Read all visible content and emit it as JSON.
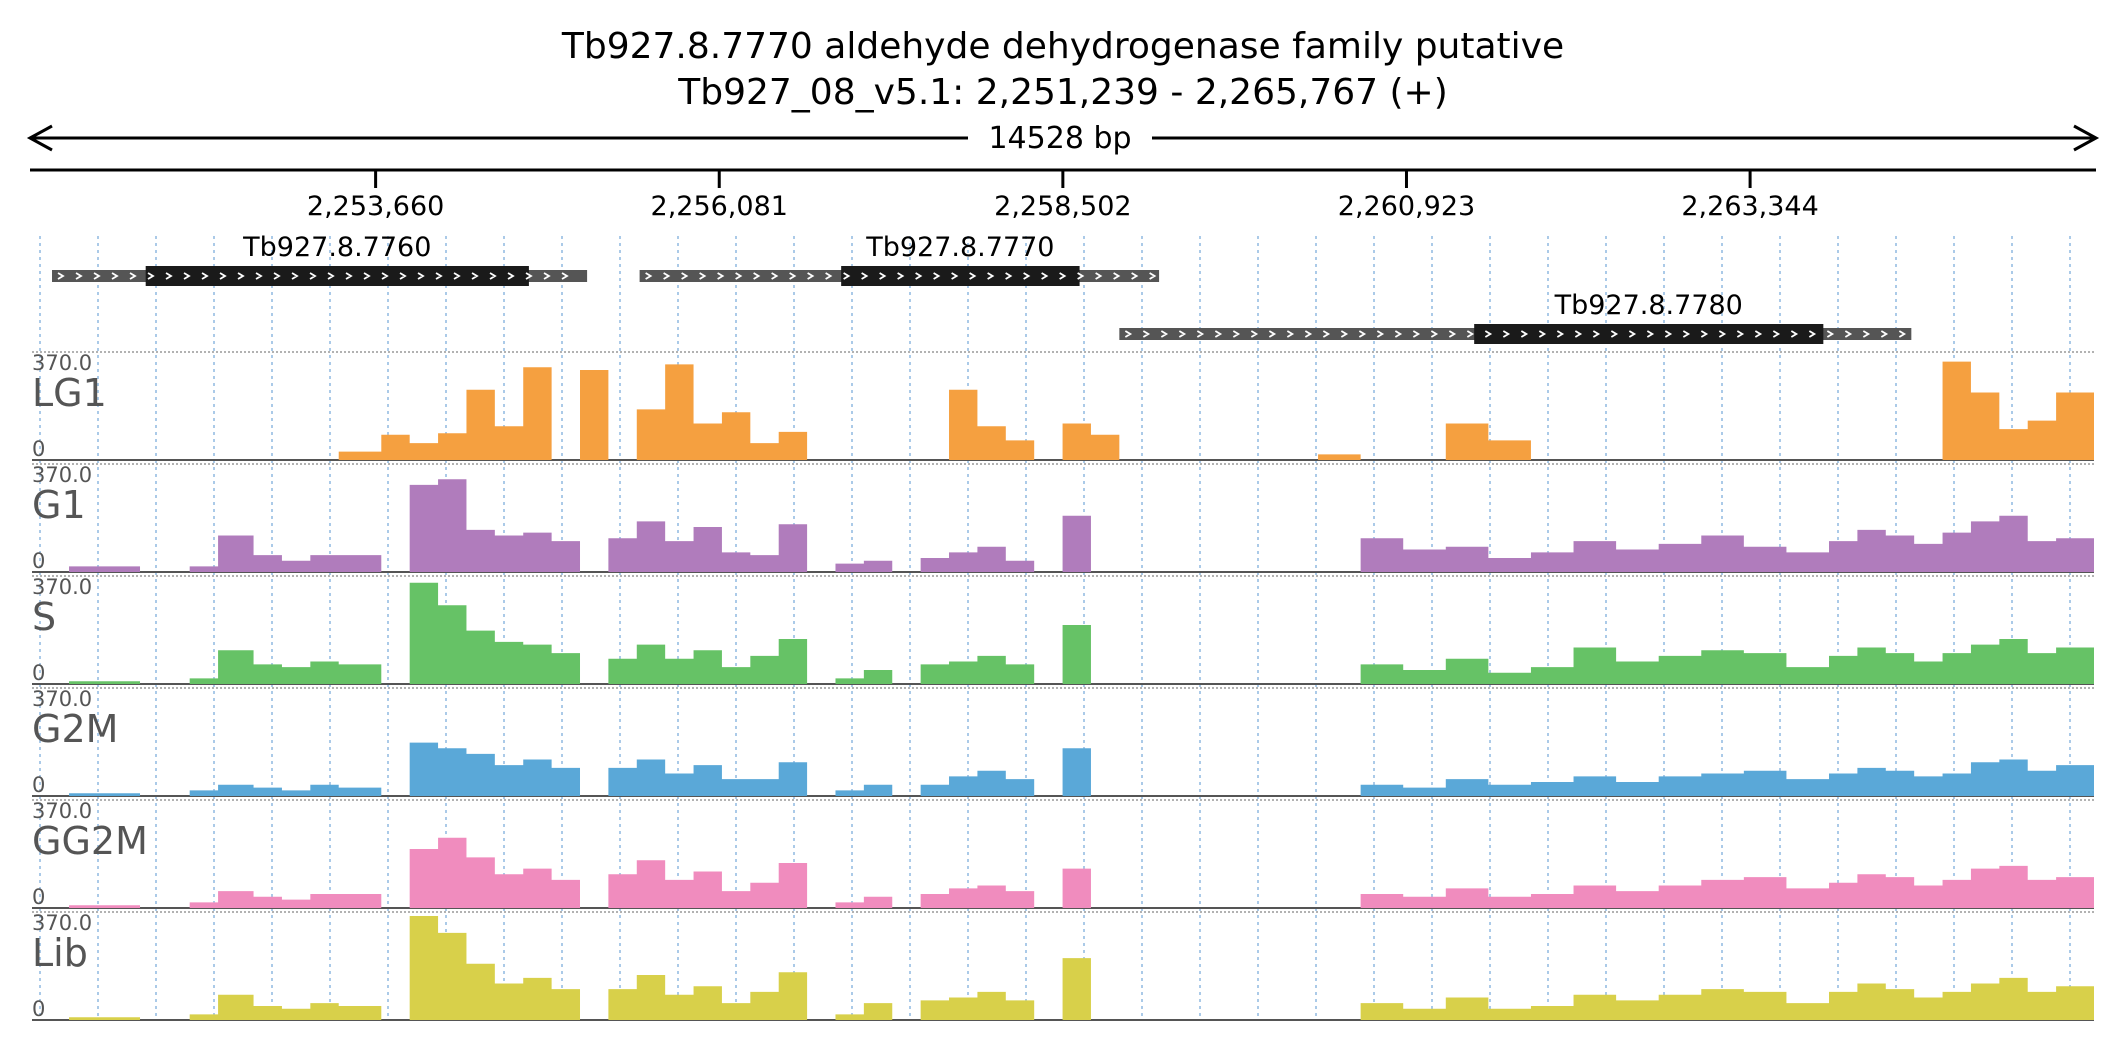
{
  "title": "Tb927.8.7770  aldehyde dehydrogenase family  putative",
  "subtitle": "Tb927_08_v5.1: 2,251,239 - 2,265,767 (+)",
  "span_label": "14528 bp",
  "chart_data": {
    "type": "area",
    "chromosome": "Tb927_08_v5.1",
    "region": {
      "start": 2251239,
      "end": 2265767,
      "strand": "+"
    },
    "x_ticks": [
      {
        "value": 2253660,
        "label": "2,253,660"
      },
      {
        "value": 2256081,
        "label": "2,256,081"
      },
      {
        "value": 2258502,
        "label": "2,258,502"
      },
      {
        "value": 2260923,
        "label": "2,260,923"
      },
      {
        "value": 2263344,
        "label": "2,263,344"
      }
    ],
    "genes": [
      {
        "name": "Tb927.8.7760",
        "start": 2251380,
        "end": 2255150,
        "cds_start": 2252040,
        "cds_end": 2254740
      },
      {
        "name": "Tb927.8.7770",
        "start": 2255520,
        "end": 2259180,
        "cds_start": 2256940,
        "cds_end": 2258620
      },
      {
        "name": "Tb927.8.7780",
        "start": 2258900,
        "end": 2264480,
        "cds_start": 2261400,
        "cds_end": 2263860
      }
    ],
    "tracks": [
      {
        "name": "LG1",
        "color": "#f5a040",
        "ymin": "0",
        "ymax": "370.0",
        "ylim": [
          0,
          370
        ]
      },
      {
        "name": "G1",
        "color": "#b07cbc",
        "ymin": "0",
        "ymax": "370.0",
        "ylim": [
          0,
          370
        ]
      },
      {
        "name": "S",
        "color": "#66c266",
        "ymin": "0",
        "ymax": "370.0",
        "ylim": [
          0,
          370
        ]
      },
      {
        "name": "G2M",
        "color": "#5aa8d8",
        "ymin": "0",
        "ymax": "370.0",
        "ylim": [
          0,
          370
        ]
      },
      {
        "name": "GG2M",
        "color": "#f08cbe",
        "ymin": "0",
        "ymax": "370.0",
        "ylim": [
          0,
          370
        ]
      },
      {
        "name": "Lib",
        "color": "#d8d04a",
        "ymin": "0",
        "ymax": "370.0",
        "ylim": [
          0,
          370
        ]
      }
    ],
    "coverage_x": [
      2251239,
      2251500,
      2252000,
      2252350,
      2252550,
      2252800,
      2253000,
      2253200,
      2253400,
      2253700,
      2253900,
      2254100,
      2254300,
      2254500,
      2254700,
      2254900,
      2255100,
      2255300,
      2255500,
      2255700,
      2255900,
      2256100,
      2256300,
      2256500,
      2256700,
      2256900,
      2257100,
      2257300,
      2257500,
      2257700,
      2257900,
      2258100,
      2258300,
      2258500,
      2258700,
      2258900,
      2259100,
      2259500,
      2259800,
      2260000,
      2260300,
      2260600,
      2260900,
      2261200,
      2261500,
      2261800,
      2262100,
      2262400,
      2262700,
      2263000,
      2263300,
      2263600,
      2263900,
      2264100,
      2264300,
      2264500,
      2264700,
      2264900,
      2265100,
      2265300,
      2265500,
      2265767
    ],
    "coverage": {
      "LG1": [
        0,
        0,
        0,
        0,
        0,
        0,
        0,
        0,
        30,
        90,
        60,
        95,
        250,
        120,
        330,
        0,
        320,
        0,
        180,
        340,
        130,
        170,
        60,
        100,
        0,
        0,
        0,
        0,
        0,
        250,
        120,
        70,
        0,
        130,
        90,
        0,
        0,
        0,
        0,
        0,
        20,
        0,
        0,
        130,
        70,
        0,
        0,
        0,
        0,
        0,
        0,
        0,
        0,
        0,
        0,
        0,
        350,
        240,
        110,
        140,
        240,
        180
      ],
      "G1": [
        0,
        20,
        0,
        20,
        130,
        60,
        40,
        60,
        60,
        0,
        310,
        330,
        150,
        130,
        140,
        110,
        0,
        120,
        180,
        110,
        160,
        70,
        60,
        170,
        0,
        30,
        40,
        0,
        50,
        70,
        90,
        40,
        0,
        200,
        0,
        0,
        0,
        0,
        0,
        0,
        0,
        120,
        80,
        90,
        50,
        70,
        110,
        80,
        100,
        130,
        90,
        70,
        110,
        150,
        130,
        100,
        140,
        180,
        200,
        110,
        120,
        200
      ],
      "S": [
        0,
        10,
        0,
        20,
        120,
        70,
        60,
        80,
        70,
        0,
        360,
        280,
        190,
        150,
        140,
        110,
        0,
        90,
        140,
        90,
        120,
        60,
        100,
        160,
        0,
        20,
        50,
        0,
        70,
        80,
        100,
        70,
        0,
        210,
        0,
        0,
        0,
        0,
        0,
        0,
        0,
        70,
        50,
        90,
        40,
        60,
        130,
        80,
        100,
        120,
        110,
        60,
        100,
        130,
        110,
        80,
        110,
        140,
        160,
        110,
        130,
        190
      ],
      "G2M": [
        0,
        10,
        0,
        20,
        40,
        30,
        20,
        40,
        30,
        0,
        190,
        170,
        150,
        110,
        130,
        100,
        0,
        100,
        130,
        80,
        110,
        60,
        60,
        120,
        0,
        20,
        40,
        0,
        40,
        70,
        90,
        60,
        0,
        170,
        0,
        0,
        0,
        0,
        0,
        0,
        0,
        40,
        30,
        60,
        40,
        50,
        70,
        50,
        70,
        80,
        90,
        60,
        80,
        100,
        90,
        70,
        80,
        120,
        130,
        90,
        110,
        150
      ],
      "GG2M": [
        0,
        10,
        0,
        20,
        60,
        40,
        30,
        50,
        50,
        0,
        210,
        250,
        180,
        120,
        140,
        100,
        0,
        120,
        170,
        100,
        130,
        60,
        90,
        160,
        0,
        20,
        40,
        0,
        50,
        70,
        80,
        60,
        0,
        140,
        0,
        0,
        0,
        0,
        0,
        0,
        0,
        50,
        40,
        70,
        40,
        50,
        80,
        60,
        80,
        100,
        110,
        70,
        90,
        120,
        110,
        80,
        100,
        140,
        150,
        100,
        110,
        150
      ],
      "Lib": [
        0,
        10,
        0,
        20,
        90,
        50,
        40,
        60,
        50,
        0,
        370,
        310,
        200,
        130,
        150,
        110,
        0,
        110,
        160,
        90,
        120,
        60,
        100,
        170,
        0,
        20,
        60,
        0,
        70,
        80,
        100,
        70,
        0,
        220,
        0,
        0,
        0,
        0,
        0,
        0,
        0,
        60,
        40,
        80,
        40,
        50,
        90,
        70,
        90,
        110,
        100,
        60,
        100,
        130,
        110,
        80,
        100,
        130,
        150,
        100,
        120,
        180
      ]
    }
  }
}
